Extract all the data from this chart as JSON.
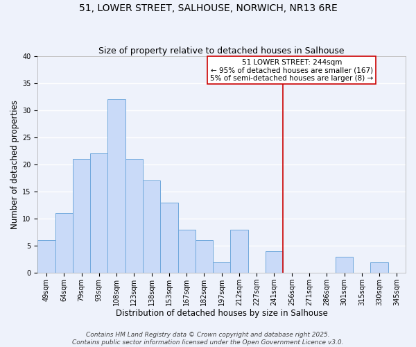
{
  "title": "51, LOWER STREET, SALHOUSE, NORWICH, NR13 6RE",
  "subtitle": "Size of property relative to detached houses in Salhouse",
  "xlabel": "Distribution of detached houses by size in Salhouse",
  "ylabel": "Number of detached properties",
  "bin_labels": [
    "49sqm",
    "64sqm",
    "79sqm",
    "93sqm",
    "108sqm",
    "123sqm",
    "138sqm",
    "153sqm",
    "167sqm",
    "182sqm",
    "197sqm",
    "212sqm",
    "227sqm",
    "241sqm",
    "256sqm",
    "271sqm",
    "286sqm",
    "301sqm",
    "315sqm",
    "330sqm",
    "345sqm"
  ],
  "bar_values": [
    6,
    11,
    21,
    22,
    32,
    21,
    17,
    13,
    8,
    6,
    2,
    8,
    0,
    4,
    0,
    0,
    0,
    3,
    0,
    2,
    0
  ],
  "bar_color": "#c9daf8",
  "bar_edge_color": "#6fa8dc",
  "vline_x": 13.5,
  "vline_color": "#cc0000",
  "annotation_title": "51 LOWER STREET: 244sqm",
  "annotation_line1": "← 95% of detached houses are smaller (167)",
  "annotation_line2": "5% of semi-detached houses are larger (8) →",
  "annotation_box_color": "#ffffff",
  "annotation_box_edge": "#cc0000",
  "ylim": [
    0,
    40
  ],
  "yticks": [
    0,
    5,
    10,
    15,
    20,
    25,
    30,
    35,
    40
  ],
  "footer1": "Contains HM Land Registry data © Crown copyright and database right 2025.",
  "footer2": "Contains public sector information licensed under the Open Government Licence v3.0.",
  "background_color": "#eef2fb",
  "grid_color": "#ffffff",
  "title_fontsize": 10,
  "subtitle_fontsize": 9,
  "axis_label_fontsize": 8.5,
  "tick_fontsize": 7,
  "annotation_fontsize": 7.5,
  "footer_fontsize": 6.5
}
